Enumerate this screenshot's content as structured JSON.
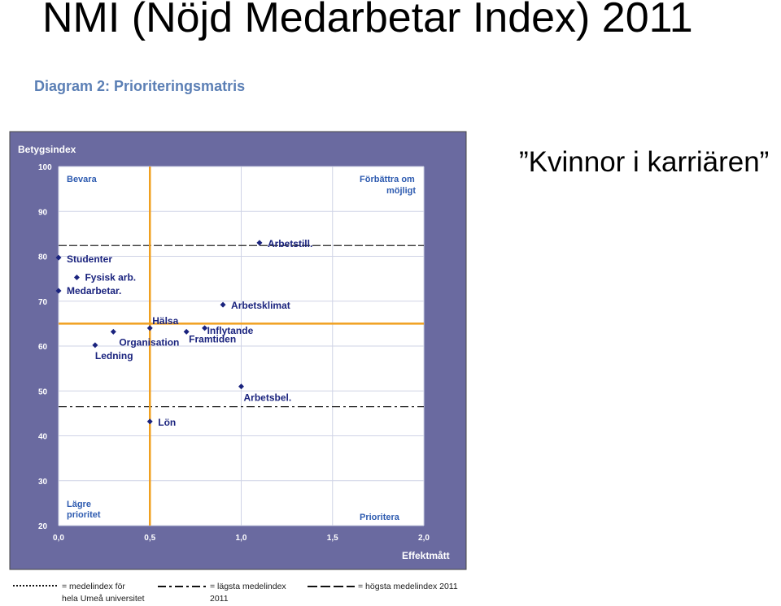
{
  "slide": {
    "title": "NMI (Nöjd Medarbetar Index) 2011",
    "diagram_heading": "Diagram 2: Prioriteringsmatris",
    "subtitle": "”Kvinnor i karriären”"
  },
  "colors": {
    "panel_bg": "#6a6aa0",
    "plot_bg": "#ffffff",
    "orange_lines": "#f0a020",
    "points": "#1a237e",
    "grid": "#cfd3e6"
  },
  "chart_data": {
    "type": "scatter",
    "ylabel": "Betygsindex",
    "xlabel": "Effektmått",
    "xlim": [
      0,
      2
    ],
    "ylim": [
      20,
      100
    ],
    "xticks": [
      "0,0",
      "0,5",
      "1,0",
      "1,5",
      "2,0"
    ],
    "yticks": [
      "20",
      "30",
      "40",
      "50",
      "60",
      "70",
      "80",
      "90",
      "100"
    ],
    "grid": true,
    "quadrants": {
      "top_left": "Bevara",
      "top_right": "Förbättra om möjligt",
      "bottom_left": "Lägre prioritet",
      "bottom_right": "Prioritera"
    },
    "points": [
      {
        "label": "Arbetstill.",
        "x": 1.1,
        "y": 83
      },
      {
        "label": "Studenter",
        "x": 0.0,
        "y": 79.7
      },
      {
        "label": "Fysisk arb.",
        "x": 0.1,
        "y": 75.3
      },
      {
        "label": "Medarbetar.",
        "x": 0.0,
        "y": 72.3
      },
      {
        "label": "Arbetsklimat",
        "x": 0.9,
        "y": 69.2
      },
      {
        "label": "Hälsa",
        "x": 0.5,
        "y": 64.0
      },
      {
        "label": "Inflytande",
        "x": 0.8,
        "y": 64.0
      },
      {
        "label": "Framtiden",
        "x": 0.7,
        "y": 63.2
      },
      {
        "label": "Organisation",
        "x": 0.3,
        "y": 63.2
      },
      {
        "label": "Ledning",
        "x": 0.2,
        "y": 60.2
      },
      {
        "label": "Arbetsbel.",
        "x": 1.0,
        "y": 51.0
      },
      {
        "label": "Lön",
        "x": 0.5,
        "y": 43.2
      }
    ],
    "reference_lines": {
      "horizontal_solid": 65,
      "vertical_solid": 0.5,
      "highest_index_2011": 82.4,
      "lowest_index_2011": 46.5
    },
    "legend": [
      {
        "label": "= medelindex för hela Umeå universitet",
        "style": "dotted"
      },
      {
        "label": "= lägsta medelindex 2011",
        "style": "dash-dot"
      },
      {
        "label": "= högsta medelindex 2011",
        "style": "dashed"
      }
    ]
  }
}
